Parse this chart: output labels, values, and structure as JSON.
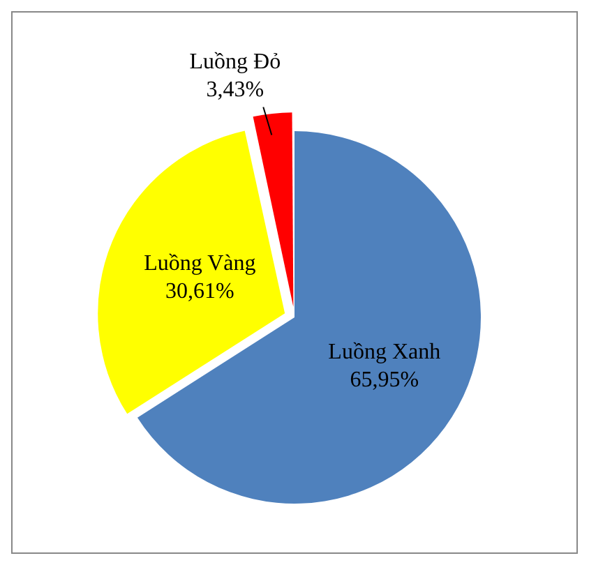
{
  "chart_data": {
    "type": "pie",
    "categories": [
      "Luồng Xanh",
      "Luồng Vàng",
      "Luồng Đỏ"
    ],
    "values": [
      65.95,
      30.61,
      3.43
    ],
    "colors": [
      "#4f81bd",
      "#ffff00",
      "#ff0000"
    ],
    "value_labels": [
      "65,95%",
      "30,61%",
      "3,43%"
    ],
    "legend": false
  }
}
